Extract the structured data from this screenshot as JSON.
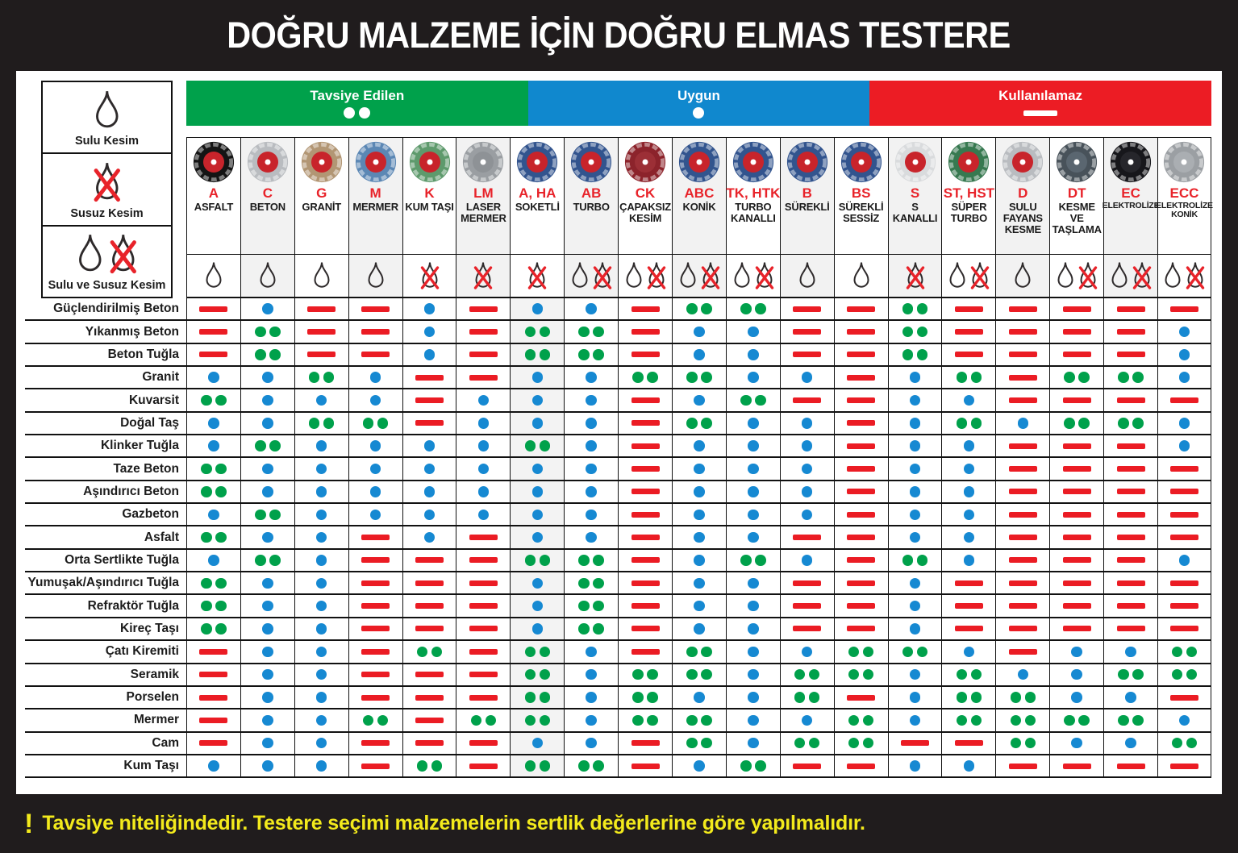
{
  "title": "DOĞRU MALZEME İÇİN DOĞRU ELMAS TESTERE",
  "footnote": {
    "mark": "!",
    "text": "Tavsiye niteliğindedir. Testere seçimi malzemelerin sertlik değerlerine göre yapılmalıdır.",
    "color": "#F3EA1C"
  },
  "marker_colors": {
    "rec": "#00A14B",
    "ok": "#1689D2",
    "no": "#EB1C24"
  },
  "legend": {
    "ratings": [
      {
        "key": "rec",
        "label": "Tavsiye Edilen",
        "marker": "double-dot",
        "color": "#00A14B"
      },
      {
        "key": "ok",
        "label": "Uygun",
        "marker": "single-dot",
        "color": "#1088CE"
      },
      {
        "key": "no",
        "label": "Kullanılamaz",
        "marker": "dash",
        "color": "#EC1C24"
      }
    ],
    "cutting_modes": [
      {
        "key": "wet",
        "label": "Sulu Kesim"
      },
      {
        "key": "dry",
        "label": "Susuz Kesim"
      },
      {
        "key": "wet-dry",
        "label": "Sulu ve Susuz Kesim"
      }
    ]
  },
  "blades": [
    {
      "code": "A",
      "name": "ASFALT",
      "cutting": "wet",
      "blade_color": "#141414",
      "center_color": "#c8242b"
    },
    {
      "code": "C",
      "name": "BETON",
      "cutting": "wet",
      "blade_color": "#b9bcc0",
      "center_color": "#c8242b"
    },
    {
      "code": "G",
      "name": "GRANİT",
      "cutting": "wet",
      "blade_color": "#b29674",
      "center_color": "#c8242b"
    },
    {
      "code": "M",
      "name": "MERMER",
      "cutting": "wet",
      "blade_color": "#5b87b4",
      "center_color": "#c8242b"
    },
    {
      "code": "K",
      "name": "KUM TAŞI",
      "cutting": "dry",
      "blade_color": "#5e9a6c",
      "center_color": "#c8242b"
    },
    {
      "code": "LM",
      "name": "LASER MERMER",
      "cutting": "dry",
      "blade_color": "#9a9ea2",
      "center_color": "#8e9296"
    },
    {
      "code": "A, HA",
      "name": "SOKETLİ",
      "cutting": "dry",
      "blade_color": "#32548e",
      "center_color": "#c8242b"
    },
    {
      "code": "AB",
      "name": "TURBO",
      "cutting": "wet-dry",
      "blade_color": "#32548e",
      "center_color": "#c8242b"
    },
    {
      "code": "CK",
      "name": "ÇAPAKSIZ KESİM",
      "cutting": "wet-dry",
      "blade_color": "#8c232b",
      "center_color": "#9c2f36"
    },
    {
      "code": "ABC",
      "name": "KONİK",
      "cutting": "wet-dry",
      "blade_color": "#32548e",
      "center_color": "#c8242b"
    },
    {
      "code": "TK, HTK",
      "name": "TURBO KANALLI",
      "cutting": "wet-dry",
      "blade_color": "#32548e",
      "center_color": "#c8242b"
    },
    {
      "code": "B",
      "name": "SÜREKLİ",
      "cutting": "wet",
      "blade_color": "#32548e",
      "center_color": "#c8242b"
    },
    {
      "code": "BS",
      "name": "SÜREKLİ SESSİZ",
      "cutting": "wet",
      "blade_color": "#32548e",
      "center_color": "#c8242b"
    },
    {
      "code": "S",
      "name": "S KANALLI",
      "cutting": "dry",
      "blade_color": "#d9dbdd",
      "center_color": "#c8242b"
    },
    {
      "code": "ST, HST",
      "name": "SÜPER TURBO",
      "cutting": "wet-dry",
      "blade_color": "#377950",
      "center_color": "#c8242b"
    },
    {
      "code": "D",
      "name": "SULU FAYANS KESME",
      "cutting": "wet",
      "blade_color": "#b9bcc0",
      "center_color": "#c8242b"
    },
    {
      "code": "DT",
      "name": "KESME VE TAŞLAMA",
      "cutting": "wet-dry",
      "blade_color": "#48525a",
      "center_color": "#5a6670"
    },
    {
      "code": "EC",
      "name": "ELEKTROLİZE",
      "cutting": "wet-dry",
      "blade_color": "#17171b",
      "center_color": "#26262b"
    },
    {
      "code": "ECC",
      "name": "ELEKTROLİZE KONİK",
      "cutting": "wet-dry",
      "blade_color": "#9b9fa3",
      "center_color": "#aaaeb2"
    }
  ],
  "chart_data": {
    "type": "table",
    "title": "DOĞRU MALZEME İÇİN DOĞRU ELMAS TESTERE",
    "value_legend": {
      "rec": "Tavsiye Edilen (iki yeşil nokta)",
      "ok": "Uygun (mavi nokta)",
      "no": "Kullanılamaz (kırmızı çizgi)"
    },
    "columns": [
      "A",
      "C",
      "G",
      "M",
      "K",
      "LM",
      "A, HA",
      "AB",
      "CK",
      "ABC",
      "TK, HTK",
      "B",
      "BS",
      "S",
      "ST, HST",
      "D",
      "DT",
      "EC",
      "ECC"
    ],
    "rows": [
      {
        "material": "Güçlendirilmiş Beton",
        "ratings": [
          "no",
          "ok",
          "no",
          "no",
          "ok",
          "no",
          "ok",
          "ok",
          "no",
          "rec",
          "rec",
          "no",
          "no",
          "rec",
          "no",
          "no",
          "no",
          "no",
          "no"
        ]
      },
      {
        "material": "Yıkanmış Beton",
        "ratings": [
          "no",
          "rec",
          "no",
          "no",
          "ok",
          "no",
          "rec",
          "rec",
          "no",
          "ok",
          "ok",
          "no",
          "no",
          "rec",
          "no",
          "no",
          "no",
          "no",
          "ok"
        ]
      },
      {
        "material": "Beton Tuğla",
        "ratings": [
          "no",
          "rec",
          "no",
          "no",
          "ok",
          "no",
          "rec",
          "rec",
          "no",
          "ok",
          "ok",
          "no",
          "no",
          "rec",
          "no",
          "no",
          "no",
          "no",
          "ok"
        ]
      },
      {
        "material": "Granit",
        "ratings": [
          "ok",
          "ok",
          "rec",
          "ok",
          "no",
          "no",
          "ok",
          "ok",
          "rec",
          "rec",
          "ok",
          "ok",
          "no",
          "ok",
          "rec",
          "no",
          "rec",
          "rec",
          "ok"
        ]
      },
      {
        "material": "Kuvarsit",
        "ratings": [
          "rec",
          "ok",
          "ok",
          "ok",
          "no",
          "ok",
          "ok",
          "ok",
          "no",
          "ok",
          "rec",
          "no",
          "no",
          "ok",
          "ok",
          "no",
          "no",
          "no",
          "no"
        ]
      },
      {
        "material": "Doğal Taş",
        "ratings": [
          "ok",
          "ok",
          "rec",
          "rec",
          "no",
          "ok",
          "ok",
          "ok",
          "no",
          "rec",
          "ok",
          "ok",
          "no",
          "ok",
          "rec",
          "ok",
          "rec",
          "rec",
          "ok"
        ]
      },
      {
        "material": "Klinker Tuğla",
        "ratings": [
          "ok",
          "rec",
          "ok",
          "ok",
          "ok",
          "ok",
          "rec",
          "ok",
          "no",
          "ok",
          "ok",
          "ok",
          "no",
          "ok",
          "ok",
          "no",
          "no",
          "no",
          "ok"
        ]
      },
      {
        "material": "Taze Beton",
        "ratings": [
          "rec",
          "ok",
          "ok",
          "ok",
          "ok",
          "ok",
          "ok",
          "ok",
          "no",
          "ok",
          "ok",
          "ok",
          "no",
          "ok",
          "ok",
          "no",
          "no",
          "no",
          "no"
        ]
      },
      {
        "material": "Aşındırıcı Beton",
        "ratings": [
          "rec",
          "ok",
          "ok",
          "ok",
          "ok",
          "ok",
          "ok",
          "ok",
          "no",
          "ok",
          "ok",
          "ok",
          "no",
          "ok",
          "ok",
          "no",
          "no",
          "no",
          "no"
        ]
      },
      {
        "material": "Gazbeton",
        "ratings": [
          "ok",
          "rec",
          "ok",
          "ok",
          "ok",
          "ok",
          "ok",
          "ok",
          "no",
          "ok",
          "ok",
          "ok",
          "no",
          "ok",
          "ok",
          "no",
          "no",
          "no",
          "no"
        ]
      },
      {
        "material": "Asfalt",
        "ratings": [
          "rec",
          "ok",
          "ok",
          "no",
          "ok",
          "no",
          "ok",
          "ok",
          "no",
          "ok",
          "ok",
          "no",
          "no",
          "ok",
          "ok",
          "no",
          "no",
          "no",
          "no"
        ]
      },
      {
        "material": "Orta Sertlikte Tuğla",
        "ratings": [
          "ok",
          "rec",
          "ok",
          "no",
          "no",
          "no",
          "rec",
          "rec",
          "no",
          "ok",
          "rec",
          "ok",
          "no",
          "rec",
          "ok",
          "no",
          "no",
          "no",
          "ok"
        ]
      },
      {
        "material": "Yumuşak/Aşındırıcı Tuğla",
        "ratings": [
          "rec",
          "ok",
          "ok",
          "no",
          "no",
          "no",
          "ok",
          "rec",
          "no",
          "ok",
          "ok",
          "no",
          "no",
          "ok",
          "no",
          "no",
          "no",
          "no",
          "no"
        ]
      },
      {
        "material": "Refraktör Tuğla",
        "ratings": [
          "rec",
          "ok",
          "ok",
          "no",
          "no",
          "no",
          "ok",
          "rec",
          "no",
          "ok",
          "ok",
          "no",
          "no",
          "ok",
          "no",
          "no",
          "no",
          "no",
          "no"
        ]
      },
      {
        "material": "Kireç Taşı",
        "ratings": [
          "rec",
          "ok",
          "ok",
          "no",
          "no",
          "no",
          "ok",
          "rec",
          "no",
          "ok",
          "ok",
          "no",
          "no",
          "ok",
          "no",
          "no",
          "no",
          "no",
          "no"
        ]
      },
      {
        "material": "Çatı Kiremiti",
        "ratings": [
          "no",
          "ok",
          "ok",
          "no",
          "rec",
          "no",
          "rec",
          "ok",
          "no",
          "rec",
          "ok",
          "ok",
          "rec",
          "rec",
          "ok",
          "no",
          "ok",
          "ok",
          "rec"
        ]
      },
      {
        "material": "Seramik",
        "ratings": [
          "no",
          "ok",
          "ok",
          "no",
          "no",
          "no",
          "rec",
          "ok",
          "rec",
          "rec",
          "ok",
          "rec",
          "rec",
          "ok",
          "rec",
          "ok",
          "ok",
          "rec",
          "rec"
        ]
      },
      {
        "material": "Porselen",
        "ratings": [
          "no",
          "ok",
          "ok",
          "no",
          "no",
          "no",
          "rec",
          "ok",
          "rec",
          "ok",
          "ok",
          "rec",
          "no",
          "ok",
          "rec",
          "rec",
          "ok",
          "ok",
          "no"
        ]
      },
      {
        "material": "Mermer",
        "ratings": [
          "no",
          "ok",
          "ok",
          "rec",
          "no",
          "rec",
          "rec",
          "ok",
          "rec",
          "rec",
          "ok",
          "ok",
          "rec",
          "ok",
          "rec",
          "rec",
          "rec",
          "rec",
          "ok"
        ]
      },
      {
        "material": "Cam",
        "ratings": [
          "no",
          "ok",
          "ok",
          "no",
          "no",
          "no",
          "ok",
          "ok",
          "no",
          "rec",
          "ok",
          "rec",
          "rec",
          "no",
          "no",
          "rec",
          "ok",
          "ok",
          "rec"
        ]
      },
      {
        "material": "Kum Taşı",
        "ratings": [
          "ok",
          "ok",
          "ok",
          "no",
          "rec",
          "no",
          "rec",
          "rec",
          "no",
          "ok",
          "rec",
          "no",
          "no",
          "ok",
          "ok",
          "no",
          "no",
          "no",
          "no"
        ]
      }
    ]
  }
}
